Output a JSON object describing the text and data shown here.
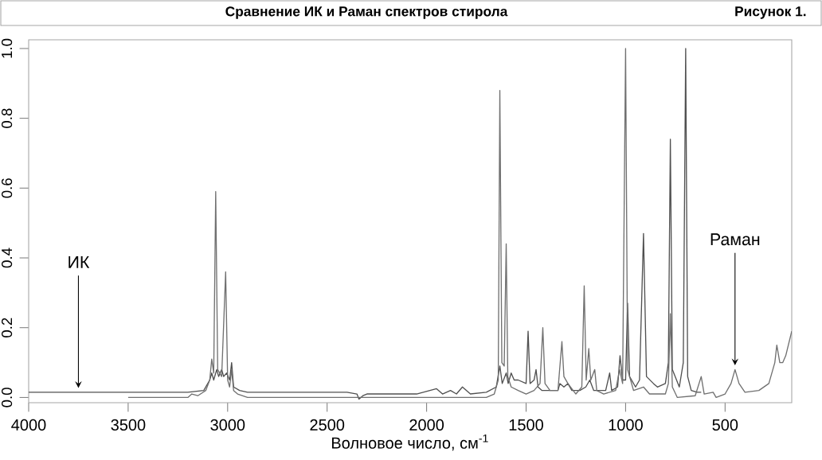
{
  "chart_data": {
    "type": "line",
    "title": "Сравнение ИК и Раман спектров стирола",
    "xlabel": "Волновое число, см$^{-1}$",
    "xlim": [
      4000,
      165
    ],
    "ylim": [
      -0.015,
      1.025
    ],
    "xticks": [
      4000,
      3500,
      3000,
      2500,
      2000,
      1500,
      1000,
      500
    ],
    "yticks": [
      {
        "value": 0,
        "label": "0.0"
      },
      {
        "value": 0.2,
        "label": "0.2"
      },
      {
        "value": 0.4,
        "label": "0.4"
      },
      {
        "value": 0.6,
        "label": "0.6"
      },
      {
        "value": 0.8,
        "label": "0.8"
      },
      {
        "value": 1,
        "label": "1.0"
      }
    ],
    "annotations": [
      {
        "text": "ИК",
        "x": 3750,
        "y": 0.015
      },
      {
        "text": "Раман",
        "x": 450,
        "y": 0.08
      },
      "Рисунок 1."
    ],
    "series": [
      {
        "color": "#505050",
        "x": [
          4000,
          3500,
          3200,
          3120,
          3090,
          3080,
          3070,
          3055,
          3045,
          3030,
          3020,
          3005,
          2990,
          2980,
          2970,
          2940,
          2900,
          2400,
          2350,
          2340,
          2320,
          2300,
          2050,
          1950,
          1920,
          1880,
          1850,
          1820,
          1780,
          1700,
          1650,
          1632,
          1620,
          1600,
          1590,
          1575,
          1560,
          1540,
          1500,
          1490,
          1480,
          1460,
          1450,
          1440,
          1420,
          1340,
          1330,
          1310,
          1290,
          1270,
          1230,
          1200,
          1180,
          1160,
          1100,
          1080,
          1070,
          1040,
          1028,
          1015,
          1000,
          990,
          980,
          950,
          930,
          910,
          895,
          860,
          840,
          800,
          785,
          775,
          765,
          730,
          710,
          698,
          688,
          670,
          640,
          620
        ],
        "values": [
          0.015,
          0.015,
          0.015,
          0.02,
          0.05,
          0.07,
          0.05,
          0.08,
          0.06,
          0.08,
          0.06,
          0.07,
          0.05,
          0.1,
          0.03,
          0.02,
          0.015,
          0.015,
          0.01,
          -0.005,
          0.005,
          0.01,
          0.01,
          0.025,
          0.01,
          0.02,
          0.01,
          0.03,
          0.01,
          0.015,
          0.03,
          0.09,
          0.04,
          0.07,
          0.04,
          0.07,
          0.05,
          0.05,
          0.04,
          0.19,
          0.04,
          0.05,
          0.08,
          0.03,
          0.02,
          0.02,
          0.04,
          0.03,
          0.04,
          0.02,
          0.02,
          0.03,
          0.05,
          0.02,
          0.02,
          0.07,
          0.02,
          0.03,
          0.12,
          0.05,
          0.05,
          0.27,
          0.06,
          0.03,
          0.05,
          0.47,
          0.06,
          0.04,
          0.03,
          0.04,
          0.1,
          0.74,
          0.08,
          0.03,
          0.1,
          1.0,
          0.06,
          0.02,
          0.015,
          0.015
        ]
      },
      {
        "color": "#707070",
        "x": [
          3500,
          3200,
          3180,
          3150,
          3110,
          3090,
          3080,
          3070,
          3060,
          3050,
          3030,
          3010,
          3000,
          2990,
          2980,
          2970,
          2950,
          2900,
          2000,
          1700,
          1660,
          1640,
          1632,
          1622,
          1610,
          1600,
          1592,
          1575,
          1540,
          1500,
          1460,
          1430,
          1416,
          1405,
          1380,
          1340,
          1320,
          1310,
          1290,
          1250,
          1220,
          1208,
          1198,
          1185,
          1175,
          1155,
          1145,
          1110,
          1050,
          1030,
          1015,
          1000,
          990,
          960,
          910,
          880,
          800,
          785,
          775,
          765,
          740,
          650,
          620,
          605,
          560,
          545,
          500,
          470,
          450,
          430,
          400,
          330,
          280,
          250,
          240,
          225,
          210,
          195,
          165
        ],
        "values": [
          0.0,
          0.0,
          0.01,
          0.005,
          0.02,
          0.05,
          0.11,
          0.07,
          0.59,
          0.08,
          0.06,
          0.36,
          0.05,
          0.03,
          0.08,
          0.02,
          0.01,
          0.0,
          0.0,
          0.0,
          0.01,
          0.05,
          0.88,
          0.1,
          0.09,
          0.44,
          0.06,
          0.03,
          0.02,
          0.01,
          0.02,
          0.04,
          0.2,
          0.04,
          0.02,
          0.02,
          0.16,
          0.06,
          0.04,
          0.01,
          0.03,
          0.32,
          0.05,
          0.14,
          0.05,
          0.08,
          0.02,
          0.01,
          0.02,
          0.08,
          0.04,
          1.0,
          0.08,
          0.02,
          0.03,
          0.01,
          0.01,
          0.04,
          0.24,
          0.03,
          0.0,
          0.005,
          0.06,
          0.01,
          0.015,
          0.0,
          0.01,
          0.04,
          0.08,
          0.04,
          0.015,
          0.02,
          0.04,
          0.1,
          0.15,
          0.1,
          0.1,
          0.12,
          0.19
        ]
      }
    ]
  }
}
